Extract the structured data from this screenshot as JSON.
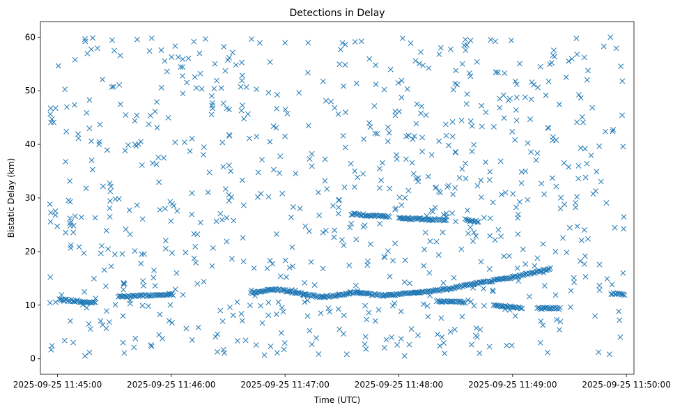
{
  "chart_data": {
    "type": "scatter",
    "title": "Detections in Delay",
    "xlabel": "Time (UTC)",
    "ylabel": "Bistatic Delay (km)",
    "marker": "x",
    "color": "#1f77b4",
    "grid": false,
    "legend": "none",
    "xlim": [
      "2025-09-25 11:44:51",
      "2025-09-25 11:50:04"
    ],
    "ylim": [
      -2.9,
      62.9
    ],
    "x_ticks": [
      "2025-09-25 11:45:00",
      "2025-09-25 11:46:00",
      "2025-09-25 11:47:00",
      "2025-09-25 11:48:00",
      "2025-09-25 11:49:00",
      "2025-09-25 11:50:00"
    ],
    "y_ticks": [
      "0",
      "10",
      "20",
      "30",
      "40",
      "50",
      "60"
    ],
    "y_tick_values": [
      0,
      10,
      20,
      30,
      40,
      50,
      60
    ],
    "time_range": [
      "2025-09-25 11:44:56",
      "2025-09-25 11:49:59"
    ],
    "tracks": [
      {
        "points": [
          [
            "2025-09-25 11:45:01",
            11.0
          ],
          [
            "2025-09-25 11:45:20",
            10.5
          ]
        ]
      },
      {
        "points": [
          [
            "2025-09-25 11:45:32",
            11.6
          ],
          [
            "2025-09-25 11:46:01",
            12.0
          ]
        ]
      },
      {
        "points": [
          [
            "2025-09-25 11:46:42",
            12.2
          ],
          [
            "2025-09-25 11:46:55",
            13.0
          ]
        ]
      },
      {
        "points": [
          [
            "2025-09-25 11:46:55",
            13.0
          ],
          [
            "2025-09-25 11:47:10",
            12.0
          ],
          [
            "2025-09-25 11:47:20",
            11.5
          ]
        ]
      },
      {
        "points": [
          [
            "2025-09-25 11:47:20",
            11.5
          ],
          [
            "2025-09-25 11:47:40",
            12.5
          ]
        ]
      },
      {
        "points": [
          [
            "2025-09-25 11:47:40",
            12.2
          ],
          [
            "2025-09-25 11:47:52",
            11.8
          ],
          [
            "2025-09-25 11:48:10",
            12.3
          ],
          [
            "2025-09-25 11:48:25",
            13.0
          ],
          [
            "2025-09-25 11:48:40",
            14.0
          ],
          [
            "2025-09-25 11:49:00",
            15.2
          ],
          [
            "2025-09-25 11:49:20",
            16.8
          ]
        ]
      },
      {
        "points": [
          [
            "2025-09-25 11:47:35",
            27.0
          ],
          [
            "2025-09-25 11:47:55",
            26.5
          ]
        ]
      },
      {
        "points": [
          [
            "2025-09-25 11:48:00",
            26.2
          ],
          [
            "2025-09-25 11:48:25",
            25.9
          ]
        ]
      },
      {
        "points": [
          [
            "2025-09-25 11:48:35",
            26.0
          ],
          [
            "2025-09-25 11:48:42",
            25.5
          ]
        ]
      },
      {
        "points": [
          [
            "2025-09-25 11:48:20",
            10.8
          ],
          [
            "2025-09-25 11:48:35",
            10.5
          ]
        ]
      },
      {
        "points": [
          [
            "2025-09-25 11:48:50",
            10.0
          ],
          [
            "2025-09-25 11:49:05",
            9.5
          ]
        ]
      },
      {
        "points": [
          [
            "2025-09-25 11:49:13",
            9.4
          ],
          [
            "2025-09-25 11:49:25",
            9.4
          ]
        ]
      },
      {
        "points": [
          [
            "2025-09-25 11:49:52",
            12.2
          ],
          [
            "2025-09-25 11:49:59",
            12.0
          ]
        ]
      }
    ],
    "random_points_count": 800,
    "random_seed": 7
  }
}
